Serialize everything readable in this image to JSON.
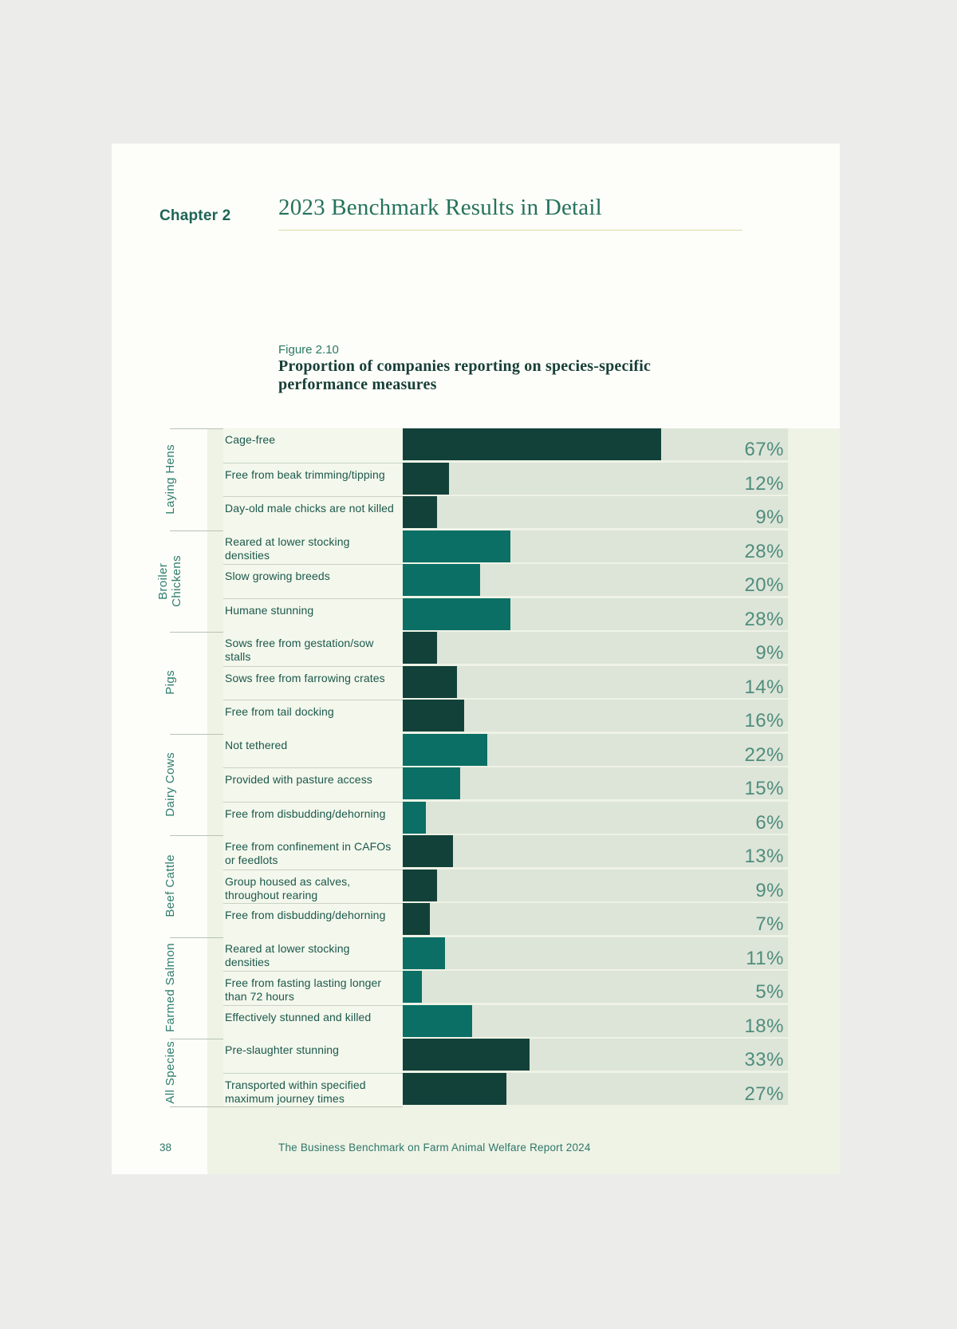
{
  "page": {
    "chapter_label": "Chapter 2",
    "chapter_title": "2023 Benchmark Results in Detail",
    "figure_label": "Figure 2.10",
    "figure_title": "Proportion of companies reporting on species-specific\nperformance measures",
    "page_number": "38",
    "footer_text": "The Business Benchmark on Farm Animal Welfare Report 2024"
  },
  "colors": {
    "dark_bar": "#12413a",
    "teal_bar": "#0b6f65",
    "track": "#dde4d8",
    "panel": "#eef3e6",
    "label_column": "#f3f7ec",
    "percent_text": "#4e8d7d",
    "heading_green": "#25725c",
    "rule_yellow_green": "#dadcaa"
  },
  "chart_data": {
    "type": "bar",
    "orientation": "horizontal",
    "unit": "%",
    "xlim": [
      0,
      100
    ],
    "title": "Proportion of companies reporting on species-specific performance measures",
    "groups": [
      {
        "species": "Laying Hens",
        "color": "#12413a",
        "measures": [
          {
            "label": "Cage-free",
            "value": 67
          },
          {
            "label": "Free from beak trimming/tipping",
            "value": 12
          },
          {
            "label": "Day-old male chicks are not killed",
            "value": 9
          }
        ]
      },
      {
        "species": "Broiler\nChickens",
        "color": "#0b6f65",
        "measures": [
          {
            "label": "Reared at lower stocking densities",
            "value": 28
          },
          {
            "label": "Slow growing breeds",
            "value": 20
          },
          {
            "label": "Humane stunning",
            "value": 28
          }
        ]
      },
      {
        "species": "Pigs",
        "color": "#12413a",
        "measures": [
          {
            "label": "Sows free from gestation/sow stalls",
            "value": 9
          },
          {
            "label": "Sows free from farrowing crates",
            "value": 14
          },
          {
            "label": "Free from tail docking",
            "value": 16
          }
        ]
      },
      {
        "species": "Dairy Cows",
        "color": "#0b6f65",
        "measures": [
          {
            "label": "Not tethered",
            "value": 22
          },
          {
            "label": "Provided with pasture access",
            "value": 15
          },
          {
            "label": "Free from disbudding/dehorning",
            "value": 6
          }
        ]
      },
      {
        "species": "Beef Cattle",
        "color": "#12413a",
        "measures": [
          {
            "label": "Free from confinement in CAFOs or feedlots",
            "value": 13
          },
          {
            "label": "Group housed as calves, throughout rearing",
            "value": 9
          },
          {
            "label": "Free from disbudding/dehorning",
            "value": 7
          }
        ]
      },
      {
        "species": "Farmed Salmon",
        "color": "#0b6f65",
        "measures": [
          {
            "label": "Reared at lower stocking densities",
            "value": 11
          },
          {
            "label": "Free from fasting lasting longer than 72 hours",
            "value": 5
          },
          {
            "label": "Effectively stunned and killed",
            "value": 18
          }
        ]
      },
      {
        "species": "All Species",
        "color": "#12413a",
        "measures": [
          {
            "label": "Pre-slaughter stunning",
            "value": 33
          },
          {
            "label": "Transported within specified maximum journey times",
            "value": 27
          }
        ]
      }
    ]
  }
}
